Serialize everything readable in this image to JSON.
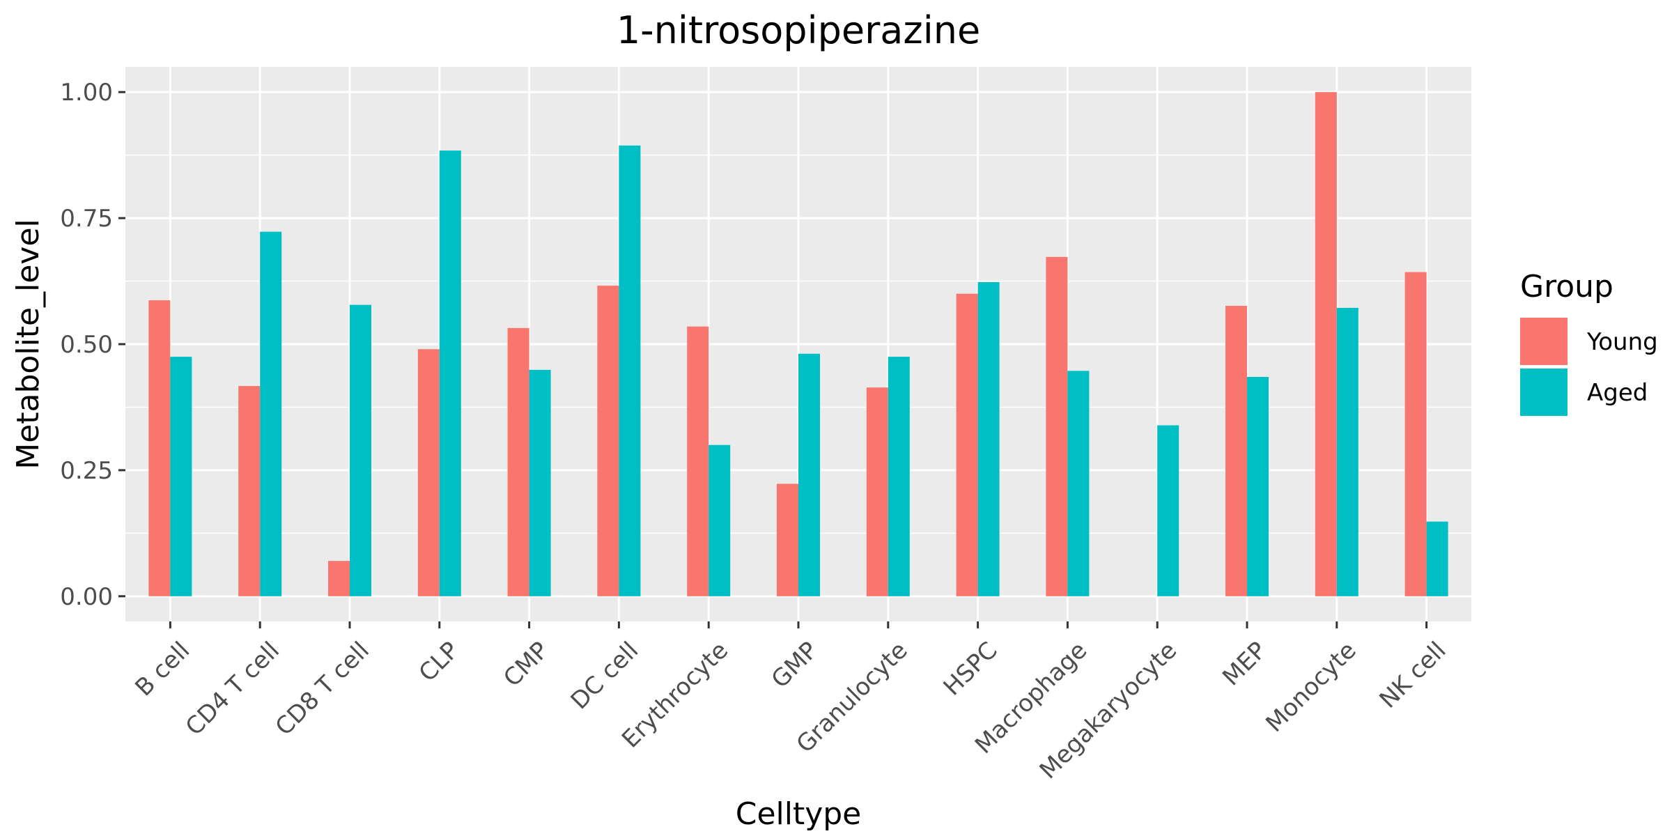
{
  "chart_data": {
    "type": "bar",
    "title": "1-nitrosopiperazine",
    "xlabel": "Celltype",
    "ylabel": "Metabolite_level",
    "categories": [
      "B cell",
      "CD4 T cell",
      "CD8 T cell",
      "CLP",
      "CMP",
      "DC cell",
      "Erythrocyte",
      "GMP",
      "Granulocyte",
      "HSPC",
      "Macrophage",
      "Megakaryocyte",
      "MEP",
      "Monocyte",
      "NK cell"
    ],
    "series": [
      {
        "name": "Young",
        "color": "#F8766D",
        "values": [
          0.587,
          0.417,
          0.07,
          0.49,
          0.532,
          0.616,
          0.535,
          0.223,
          0.414,
          0.6,
          0.673,
          0.0,
          0.576,
          1.0,
          0.643
        ]
      },
      {
        "name": "Aged",
        "color": "#00BFC4",
        "values": [
          0.475,
          0.723,
          0.578,
          0.884,
          0.449,
          0.894,
          0.3,
          0.481,
          0.475,
          0.623,
          0.447,
          0.339,
          0.435,
          0.572,
          0.148
        ]
      }
    ],
    "ylim": [
      -0.05,
      1.05
    ],
    "yticks": [
      0.0,
      0.25,
      0.5,
      0.75,
      1.0
    ],
    "ytick_labels": [
      "0.00",
      "0.25",
      "0.50",
      "0.75",
      "1.00"
    ],
    "grid": true,
    "legend": {
      "title": "Group",
      "position": "right"
    },
    "panel_color": "#EBEBEB"
  }
}
